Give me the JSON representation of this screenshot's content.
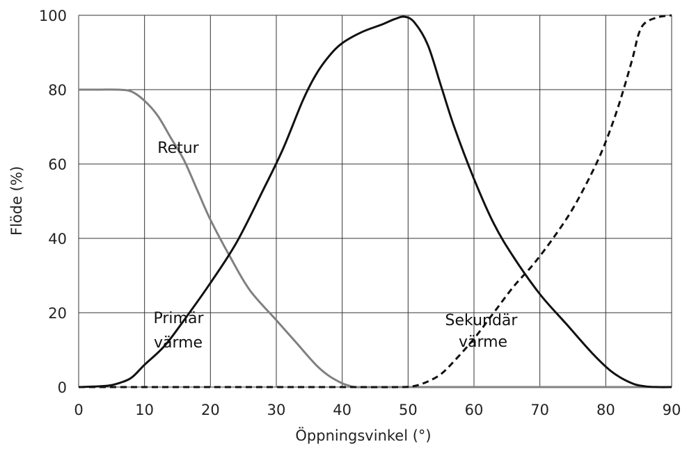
{
  "chart_data": {
    "type": "line",
    "xlabel": "Öppningsvinkel (°)",
    "ylabel": "Flöde (%)",
    "xlim": [
      0,
      90
    ],
    "ylim": [
      0,
      100
    ],
    "x_ticks": [
      0,
      10,
      20,
      30,
      40,
      50,
      60,
      70,
      80,
      90
    ],
    "y_ticks": [
      0,
      20,
      40,
      60,
      80,
      100
    ],
    "x_tick_labels": [
      "0",
      "10",
      "20",
      "30",
      "40",
      "50",
      "60",
      "70",
      "80",
      "90"
    ],
    "y_tick_labels": [
      "0",
      "20",
      "40",
      "60",
      "80",
      "100"
    ],
    "grid": true,
    "series": [
      {
        "key": "retur",
        "color": "#808080",
        "dash": "solid",
        "x": [
          0,
          3,
          6,
          8,
          10,
          12,
          14,
          16,
          18,
          20,
          23,
          26,
          30,
          33,
          36,
          38,
          40,
          41,
          42,
          45,
          50,
          60,
          70,
          80,
          90
        ],
        "y": [
          80,
          80,
          80,
          79.5,
          77,
          73,
          67,
          61,
          53,
          45,
          35,
          26,
          18,
          12,
          6,
          3,
          1,
          0.4,
          0,
          0,
          0,
          0,
          0,
          0,
          0
        ]
      },
      {
        "key": "primar",
        "color": "#111111",
        "dash": "solid",
        "x": [
          0,
          4,
          6,
          8,
          10,
          13,
          16,
          20,
          24,
          28,
          31,
          34,
          36,
          38,
          40,
          43,
          46,
          48,
          49.5,
          51,
          53,
          55,
          57,
          60,
          63,
          66,
          70,
          74,
          78,
          81,
          84,
          86,
          88,
          90
        ],
        "y": [
          0,
          0.3,
          1,
          2.5,
          6,
          11,
          18,
          28,
          39,
          53,
          64,
          77,
          84,
          89,
          92.5,
          95.5,
          97.5,
          99,
          99.6,
          98,
          92,
          81,
          70,
          56,
          44,
          35,
          25,
          17,
          9,
          4,
          1,
          0.2,
          0,
          0
        ]
      },
      {
        "key": "sekundar",
        "color": "#111111",
        "dash": "dashed",
        "x": [
          0,
          20,
          40,
          49,
          51,
          53,
          55,
          57,
          60,
          63,
          66,
          69,
          72,
          75,
          78,
          80,
          82,
          84,
          85,
          86,
          88,
          90
        ],
        "y": [
          0,
          0,
          0,
          0,
          0.3,
          1.5,
          3.5,
          7,
          13,
          20,
          27,
          33,
          40,
          48,
          58,
          66,
          76,
          88,
          95,
          98,
          99.5,
          100
        ]
      }
    ],
    "annotations": [
      {
        "key": "retur",
        "lines": [
          "Retur"
        ]
      },
      {
        "key": "primar",
        "lines": [
          "Primär",
          "värme"
        ]
      },
      {
        "key": "sekundar",
        "lines": [
          "Sekundär",
          "värme"
        ]
      }
    ]
  }
}
